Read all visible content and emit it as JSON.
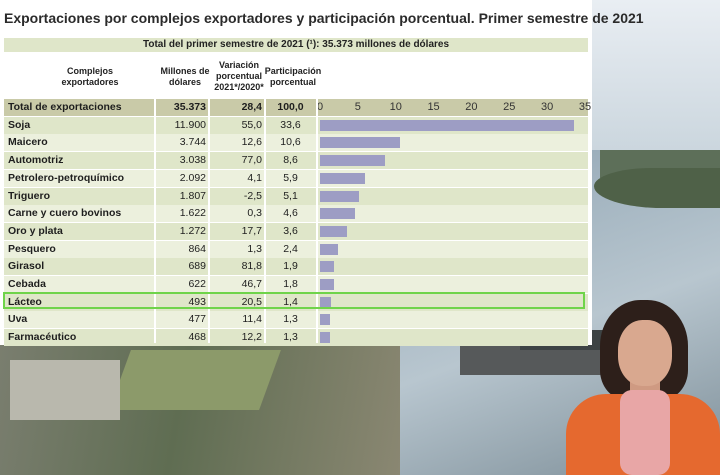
{
  "title": "Exportaciones por complejos exportadores y participación porcentual. Primer semestre de 2021",
  "total_line": "Total del primer semestre de 2021 (¹): 35.373 millones de dólares",
  "headers": {
    "complejos": "Complejos exportadores",
    "millones": "Millones de dólares",
    "variacion": "Variación porcentual 2021*/2020*",
    "participacion": "Participación porcentual"
  },
  "colors": {
    "row_even": "#dfe6c9",
    "row_odd": "#ecf0dd",
    "total_row": "#c9caa8",
    "bar": "#9d9dc4",
    "highlight": "#6fd44a"
  },
  "chart_data": {
    "type": "bar",
    "orientation": "horizontal",
    "xlim": [
      0,
      35
    ],
    "ticks": [
      "0",
      "5",
      "10",
      "15",
      "20",
      "25",
      "30",
      "35"
    ],
    "tick_values": [
      0,
      5,
      10,
      15,
      20,
      25,
      30,
      35
    ],
    "highlighted_category": "Lácteo"
  },
  "rows": [
    {
      "name": "Total de exportaciones",
      "millones": "35.373",
      "variacion": "28,4",
      "participacion": "100,0",
      "value": null
    },
    {
      "name": "Soja",
      "millones": "11.900",
      "variacion": "55,0",
      "participacion": "33,6",
      "value": 33.6
    },
    {
      "name": "Maicero",
      "millones": "3.744",
      "variacion": "12,6",
      "participacion": "10,6",
      "value": 10.6
    },
    {
      "name": "Automotriz",
      "millones": "3.038",
      "variacion": "77,0",
      "participacion": "8,6",
      "value": 8.6
    },
    {
      "name": "Petrolero-petroquímico",
      "millones": "2.092",
      "variacion": "4,1",
      "participacion": "5,9",
      "value": 5.9
    },
    {
      "name": "Triguero",
      "millones": "1.807",
      "variacion": "-2,5",
      "participacion": "5,1",
      "value": 5.1
    },
    {
      "name": "Carne y cuero bovinos",
      "millones": "1.622",
      "variacion": "0,3",
      "participacion": "4,6",
      "value": 4.6
    },
    {
      "name": "Oro y plata",
      "millones": "1.272",
      "variacion": "17,7",
      "participacion": "3,6",
      "value": 3.6
    },
    {
      "name": "Pesquero",
      "millones": "864",
      "variacion": "1,3",
      "participacion": "2,4",
      "value": 2.4
    },
    {
      "name": "Girasol",
      "millones": "689",
      "variacion": "81,8",
      "participacion": "1,9",
      "value": 1.9
    },
    {
      "name": "Cebada",
      "millones": "622",
      "variacion": "46,7",
      "participacion": "1,8",
      "value": 1.8
    },
    {
      "name": "Lácteo",
      "millones": "493",
      "variacion": "20,5",
      "participacion": "1,4",
      "value": 1.4
    },
    {
      "name": "Uva",
      "millones": "477",
      "variacion": "11,4",
      "participacion": "1,3",
      "value": 1.3
    },
    {
      "name": "Farmacéutico",
      "millones": "468",
      "variacion": "12,2",
      "participacion": "1,3",
      "value": 1.3
    }
  ]
}
